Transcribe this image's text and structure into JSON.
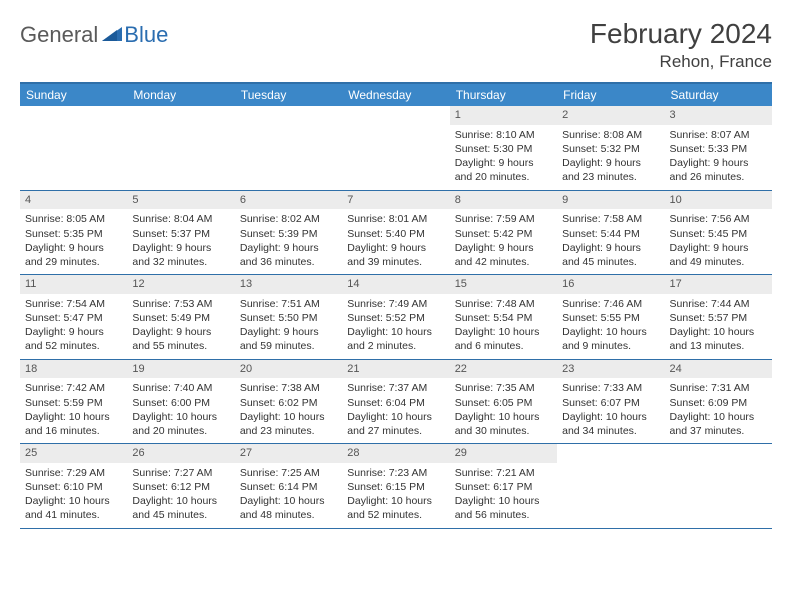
{
  "logo": {
    "general": "General",
    "blue": "Blue"
  },
  "title": {
    "month_year": "February 2024",
    "location": "Rehon, France"
  },
  "header_bg": "#3b87c8",
  "border_color": "#2f6fa8",
  "daynum_bg": "#ececec",
  "weekdays": [
    "Sunday",
    "Monday",
    "Tuesday",
    "Wednesday",
    "Thursday",
    "Friday",
    "Saturday"
  ],
  "weeks": [
    [
      {
        "empty": true
      },
      {
        "empty": true
      },
      {
        "empty": true
      },
      {
        "empty": true
      },
      {
        "day": "1",
        "sunrise": "Sunrise: 8:10 AM",
        "sunset": "Sunset: 5:30 PM",
        "daylight1": "Daylight: 9 hours",
        "daylight2": "and 20 minutes."
      },
      {
        "day": "2",
        "sunrise": "Sunrise: 8:08 AM",
        "sunset": "Sunset: 5:32 PM",
        "daylight1": "Daylight: 9 hours",
        "daylight2": "and 23 minutes."
      },
      {
        "day": "3",
        "sunrise": "Sunrise: 8:07 AM",
        "sunset": "Sunset: 5:33 PM",
        "daylight1": "Daylight: 9 hours",
        "daylight2": "and 26 minutes."
      }
    ],
    [
      {
        "day": "4",
        "sunrise": "Sunrise: 8:05 AM",
        "sunset": "Sunset: 5:35 PM",
        "daylight1": "Daylight: 9 hours",
        "daylight2": "and 29 minutes."
      },
      {
        "day": "5",
        "sunrise": "Sunrise: 8:04 AM",
        "sunset": "Sunset: 5:37 PM",
        "daylight1": "Daylight: 9 hours",
        "daylight2": "and 32 minutes."
      },
      {
        "day": "6",
        "sunrise": "Sunrise: 8:02 AM",
        "sunset": "Sunset: 5:39 PM",
        "daylight1": "Daylight: 9 hours",
        "daylight2": "and 36 minutes."
      },
      {
        "day": "7",
        "sunrise": "Sunrise: 8:01 AM",
        "sunset": "Sunset: 5:40 PM",
        "daylight1": "Daylight: 9 hours",
        "daylight2": "and 39 minutes."
      },
      {
        "day": "8",
        "sunrise": "Sunrise: 7:59 AM",
        "sunset": "Sunset: 5:42 PM",
        "daylight1": "Daylight: 9 hours",
        "daylight2": "and 42 minutes."
      },
      {
        "day": "9",
        "sunrise": "Sunrise: 7:58 AM",
        "sunset": "Sunset: 5:44 PM",
        "daylight1": "Daylight: 9 hours",
        "daylight2": "and 45 minutes."
      },
      {
        "day": "10",
        "sunrise": "Sunrise: 7:56 AM",
        "sunset": "Sunset: 5:45 PM",
        "daylight1": "Daylight: 9 hours",
        "daylight2": "and 49 minutes."
      }
    ],
    [
      {
        "day": "11",
        "sunrise": "Sunrise: 7:54 AM",
        "sunset": "Sunset: 5:47 PM",
        "daylight1": "Daylight: 9 hours",
        "daylight2": "and 52 minutes."
      },
      {
        "day": "12",
        "sunrise": "Sunrise: 7:53 AM",
        "sunset": "Sunset: 5:49 PM",
        "daylight1": "Daylight: 9 hours",
        "daylight2": "and 55 minutes."
      },
      {
        "day": "13",
        "sunrise": "Sunrise: 7:51 AM",
        "sunset": "Sunset: 5:50 PM",
        "daylight1": "Daylight: 9 hours",
        "daylight2": "and 59 minutes."
      },
      {
        "day": "14",
        "sunrise": "Sunrise: 7:49 AM",
        "sunset": "Sunset: 5:52 PM",
        "daylight1": "Daylight: 10 hours",
        "daylight2": "and 2 minutes."
      },
      {
        "day": "15",
        "sunrise": "Sunrise: 7:48 AM",
        "sunset": "Sunset: 5:54 PM",
        "daylight1": "Daylight: 10 hours",
        "daylight2": "and 6 minutes."
      },
      {
        "day": "16",
        "sunrise": "Sunrise: 7:46 AM",
        "sunset": "Sunset: 5:55 PM",
        "daylight1": "Daylight: 10 hours",
        "daylight2": "and 9 minutes."
      },
      {
        "day": "17",
        "sunrise": "Sunrise: 7:44 AM",
        "sunset": "Sunset: 5:57 PM",
        "daylight1": "Daylight: 10 hours",
        "daylight2": "and 13 minutes."
      }
    ],
    [
      {
        "day": "18",
        "sunrise": "Sunrise: 7:42 AM",
        "sunset": "Sunset: 5:59 PM",
        "daylight1": "Daylight: 10 hours",
        "daylight2": "and 16 minutes."
      },
      {
        "day": "19",
        "sunrise": "Sunrise: 7:40 AM",
        "sunset": "Sunset: 6:00 PM",
        "daylight1": "Daylight: 10 hours",
        "daylight2": "and 20 minutes."
      },
      {
        "day": "20",
        "sunrise": "Sunrise: 7:38 AM",
        "sunset": "Sunset: 6:02 PM",
        "daylight1": "Daylight: 10 hours",
        "daylight2": "and 23 minutes."
      },
      {
        "day": "21",
        "sunrise": "Sunrise: 7:37 AM",
        "sunset": "Sunset: 6:04 PM",
        "daylight1": "Daylight: 10 hours",
        "daylight2": "and 27 minutes."
      },
      {
        "day": "22",
        "sunrise": "Sunrise: 7:35 AM",
        "sunset": "Sunset: 6:05 PM",
        "daylight1": "Daylight: 10 hours",
        "daylight2": "and 30 minutes."
      },
      {
        "day": "23",
        "sunrise": "Sunrise: 7:33 AM",
        "sunset": "Sunset: 6:07 PM",
        "daylight1": "Daylight: 10 hours",
        "daylight2": "and 34 minutes."
      },
      {
        "day": "24",
        "sunrise": "Sunrise: 7:31 AM",
        "sunset": "Sunset: 6:09 PM",
        "daylight1": "Daylight: 10 hours",
        "daylight2": "and 37 minutes."
      }
    ],
    [
      {
        "day": "25",
        "sunrise": "Sunrise: 7:29 AM",
        "sunset": "Sunset: 6:10 PM",
        "daylight1": "Daylight: 10 hours",
        "daylight2": "and 41 minutes."
      },
      {
        "day": "26",
        "sunrise": "Sunrise: 7:27 AM",
        "sunset": "Sunset: 6:12 PM",
        "daylight1": "Daylight: 10 hours",
        "daylight2": "and 45 minutes."
      },
      {
        "day": "27",
        "sunrise": "Sunrise: 7:25 AM",
        "sunset": "Sunset: 6:14 PM",
        "daylight1": "Daylight: 10 hours",
        "daylight2": "and 48 minutes."
      },
      {
        "day": "28",
        "sunrise": "Sunrise: 7:23 AM",
        "sunset": "Sunset: 6:15 PM",
        "daylight1": "Daylight: 10 hours",
        "daylight2": "and 52 minutes."
      },
      {
        "day": "29",
        "sunrise": "Sunrise: 7:21 AM",
        "sunset": "Sunset: 6:17 PM",
        "daylight1": "Daylight: 10 hours",
        "daylight2": "and 56 minutes."
      },
      {
        "empty": true
      },
      {
        "empty": true
      }
    ]
  ]
}
